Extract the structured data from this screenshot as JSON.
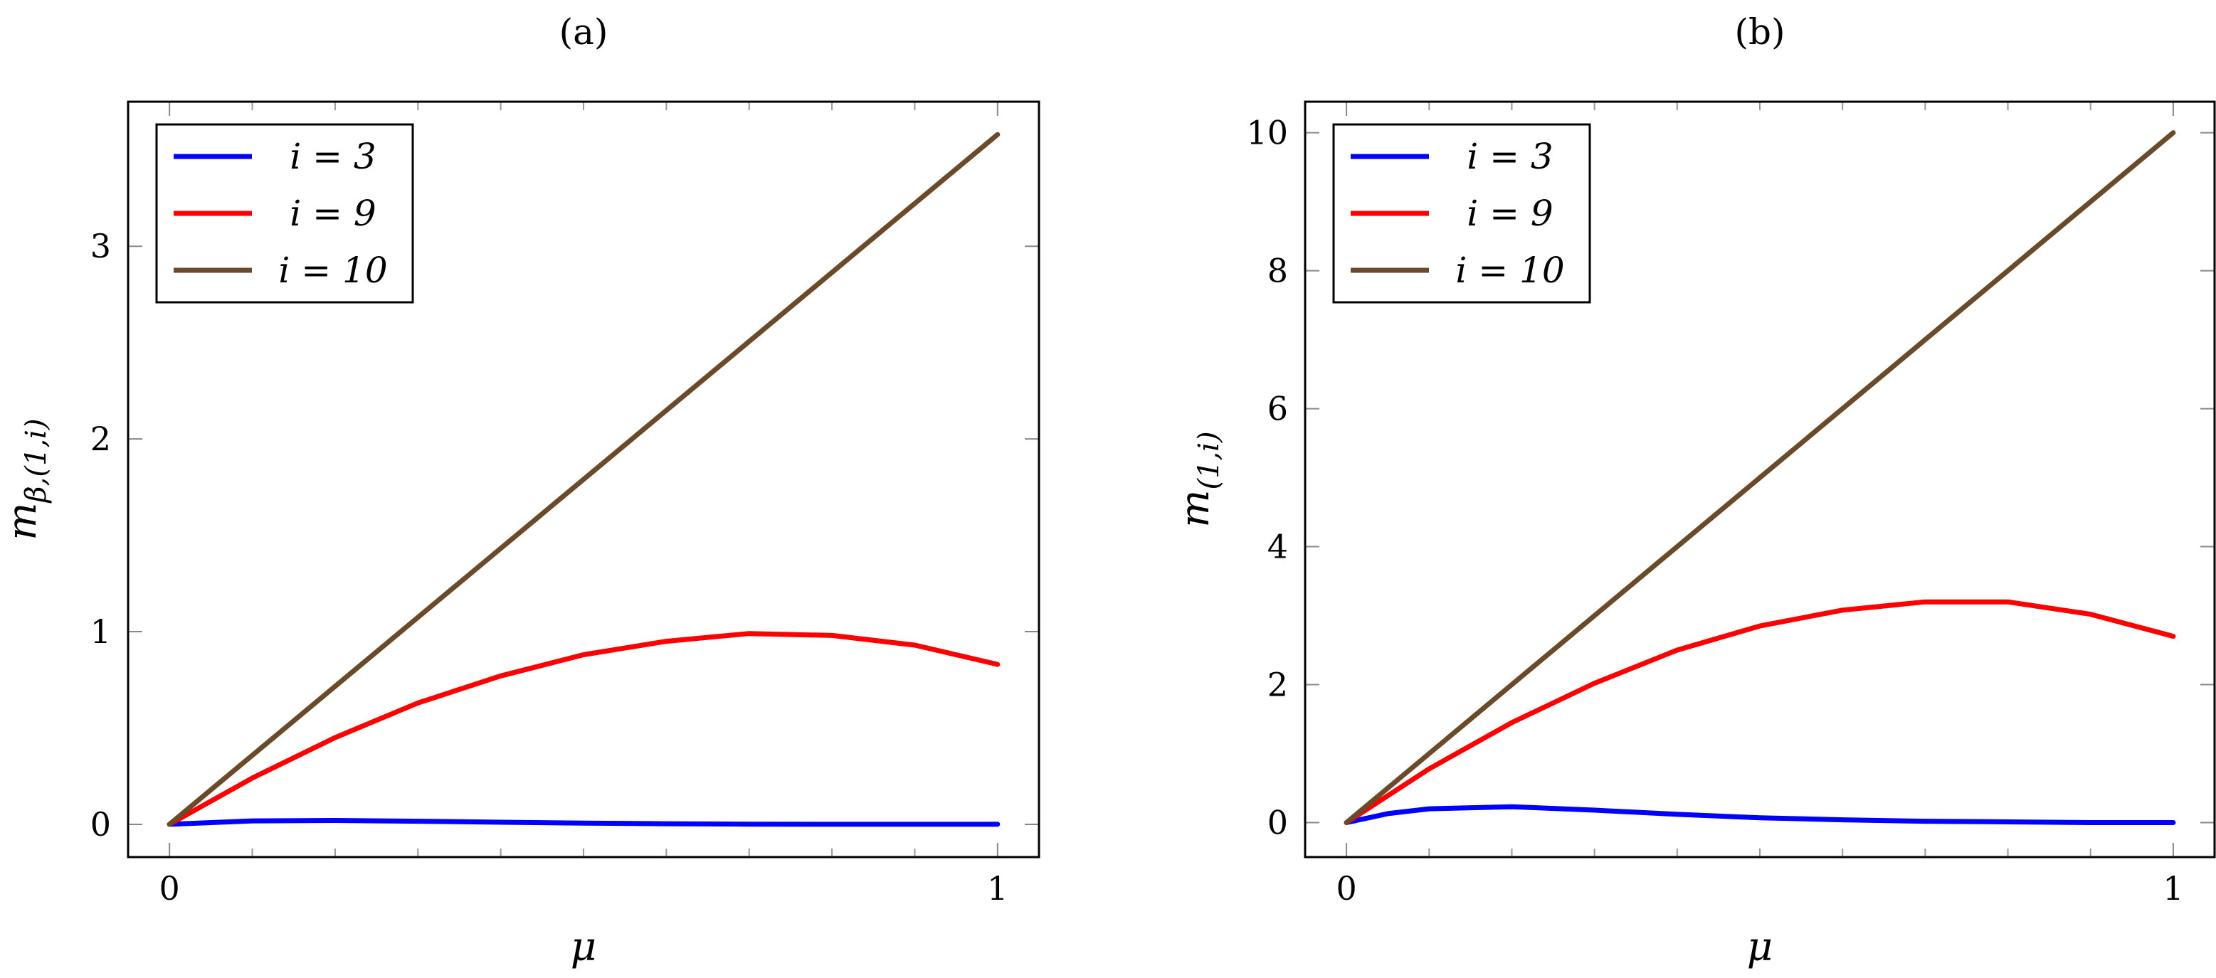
{
  "chart_data": [
    {
      "type": "line",
      "title": "(a)",
      "xlabel": "μ",
      "ylabel": "m_{β,(1,i)}",
      "xlim": [
        -0.05,
        1.05
      ],
      "ylim": [
        -0.17,
        3.75
      ],
      "x_ticks": [
        0,
        1
      ],
      "x_tick_labels": [
        "0",
        "1"
      ],
      "y_ticks": [
        0,
        1,
        2,
        3
      ],
      "y_tick_labels": [
        "0",
        "1",
        "2",
        "3"
      ],
      "legend_position": "top-left",
      "grid": false,
      "series": [
        {
          "name": "i = 3",
          "color": "#0000ff",
          "x": [
            0,
            0.1,
            0.2,
            0.3,
            0.4,
            0.5,
            0.6,
            0.7,
            0.8,
            0.9,
            1.0
          ],
          "y": [
            0,
            0.018,
            0.02,
            0.016,
            0.011,
            0.006,
            0.003,
            0.001,
            0.0,
            0.0,
            0.0
          ]
        },
        {
          "name": "i = 9",
          "color": "#ff0000",
          "x": [
            0,
            0.1,
            0.2,
            0.3,
            0.4,
            0.5,
            0.6,
            0.7,
            0.8,
            0.9,
            1.0
          ],
          "y": [
            0,
            0.24,
            0.45,
            0.63,
            0.77,
            0.88,
            0.95,
            0.99,
            0.98,
            0.93,
            0.83
          ]
        },
        {
          "name": "i = 10",
          "color": "#6b4a2a",
          "x": [
            0,
            1
          ],
          "y": [
            0,
            3.58
          ]
        }
      ]
    },
    {
      "type": "line",
      "title": "(b)",
      "xlabel": "μ",
      "ylabel": "m_{(1,i)}",
      "xlim": [
        -0.05,
        1.05
      ],
      "ylim": [
        -0.5,
        10.45
      ],
      "x_ticks": [
        0,
        1
      ],
      "x_tick_labels": [
        "0",
        "1"
      ],
      "y_ticks": [
        0,
        2,
        4,
        6,
        8,
        10
      ],
      "y_tick_labels": [
        "0",
        "2",
        "4",
        "6",
        "8",
        "10"
      ],
      "legend_position": "top-left",
      "grid": false,
      "series": [
        {
          "name": "i = 3",
          "color": "#0000ff",
          "x": [
            0,
            0.05,
            0.1,
            0.2,
            0.3,
            0.4,
            0.5,
            0.6,
            0.7,
            0.8,
            0.9,
            1.0
          ],
          "y": [
            0,
            0.13,
            0.2,
            0.23,
            0.18,
            0.12,
            0.07,
            0.04,
            0.02,
            0.01,
            0.0,
            0.0
          ]
        },
        {
          "name": "i = 9",
          "color": "#ff0000",
          "x": [
            0,
            0.1,
            0.2,
            0.3,
            0.4,
            0.5,
            0.6,
            0.7,
            0.8,
            0.9,
            1.0
          ],
          "y": [
            0,
            0.78,
            1.45,
            2.02,
            2.5,
            2.85,
            3.08,
            3.2,
            3.2,
            3.02,
            2.7
          ]
        },
        {
          "name": "i = 10",
          "color": "#6b4a2a",
          "x": [
            0,
            1
          ],
          "y": [
            0,
            10
          ]
        }
      ]
    }
  ]
}
